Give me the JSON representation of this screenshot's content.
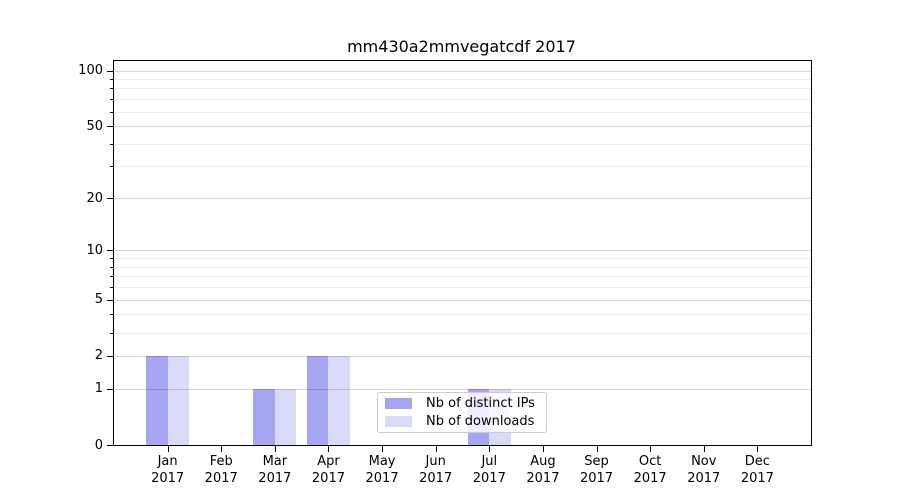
{
  "chart_data": {
    "type": "bar",
    "title": "mm430a2mmvegatcdf 2017",
    "x_ticks": [
      {
        "month": "Jan",
        "year": "2017"
      },
      {
        "month": "Feb",
        "year": "2017"
      },
      {
        "month": "Mar",
        "year": "2017"
      },
      {
        "month": "Apr",
        "year": "2017"
      },
      {
        "month": "May",
        "year": "2017"
      },
      {
        "month": "Jun",
        "year": "2017"
      },
      {
        "month": "Jul",
        "year": "2017"
      },
      {
        "month": "Aug",
        "year": "2017"
      },
      {
        "month": "Sep",
        "year": "2017"
      },
      {
        "month": "Oct",
        "year": "2017"
      },
      {
        "month": "Nov",
        "year": "2017"
      },
      {
        "month": "Dec",
        "year": "2017"
      }
    ],
    "series": [
      {
        "name": "Nb of distinct IPs",
        "color": "#a5a5f2",
        "values": [
          2,
          0,
          1,
          2,
          0,
          0,
          1,
          0,
          0,
          0,
          0,
          0
        ]
      },
      {
        "name": "Nb of downloads",
        "color": "#d9d9f8",
        "values": [
          2,
          0,
          1,
          2,
          0,
          0,
          1,
          0,
          0,
          0,
          0,
          0
        ]
      }
    ],
    "y_scale": "log1p",
    "ylim": [
      0,
      112
    ],
    "y_major_ticks": [
      0,
      1,
      2,
      5,
      10,
      20,
      50,
      100
    ],
    "y_minor_ticks": [
      3,
      4,
      6,
      7,
      8,
      9,
      30,
      40,
      60,
      70,
      80,
      90
    ],
    "grid": true,
    "legend": {
      "position": "lower center"
    },
    "colors": {
      "distinct_ips": "#a5a5f2",
      "downloads": "#d9d9f8",
      "spine": "#000000",
      "grid_major": "#d6d6d6",
      "grid_minor": "#ededed"
    }
  }
}
